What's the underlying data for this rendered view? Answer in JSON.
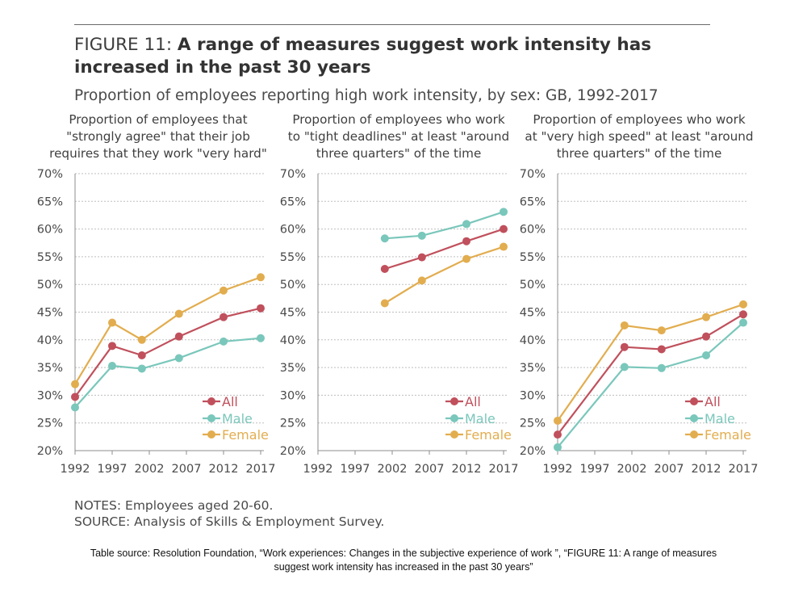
{
  "figure": {
    "label": "FIGURE 11:",
    "title": "A range of measures suggest work intensity has increased in the past 30 years",
    "subtitle": "Proportion of employees reporting high work intensity, by sex: GB, 1992-2017"
  },
  "notes": {
    "notes_line": "NOTES: Employees aged 20-60.",
    "source_line": "SOURCE: Analysis of Skills & Employment Survey."
  },
  "caption": "Table source: Resolution Foundation, “Work experiences: Changes in the subjective experience of work ”, “FIGURE 11: A range of measures suggest work intensity has increased in the past 30 years”",
  "colors": {
    "All": "#c0505c",
    "Male": "#7ac7bb",
    "Female": "#e2ad4f",
    "grid": "#bfbfbf",
    "axis": "#8c8c8c",
    "text": "#4a4a4a"
  },
  "chart_data": [
    {
      "type": "line",
      "title": "Proportion of employees that \"strongly agree\" that their job requires that they work \"very hard\"",
      "title_lines": [
        "Proportion of employees that",
        "\"strongly agree\" that their job",
        "requires that they work \"very hard\""
      ],
      "x_ticks": [
        1992,
        1997,
        2002,
        2007,
        2012,
        2017
      ],
      "y_ticks": [
        "70%",
        "65%",
        "60%",
        "55%",
        "50%",
        "45%",
        "40%",
        "35%",
        "30%",
        "25%",
        "20%"
      ],
      "xlim": [
        1992,
        2017
      ],
      "ylim": [
        20,
        70
      ],
      "legend_labels": [
        "All",
        "Male",
        "Female"
      ],
      "legend_position": "bottom-right",
      "series": [
        {
          "name": "All",
          "x": [
            1992,
            1997,
            2001,
            2006,
            2012,
            2017
          ],
          "values": [
            29.7,
            38.9,
            37.2,
            40.6,
            44.1,
            45.7
          ]
        },
        {
          "name": "Male",
          "x": [
            1992,
            1997,
            2001,
            2006,
            2012,
            2017
          ],
          "values": [
            27.8,
            35.3,
            34.8,
            36.7,
            39.7,
            40.3
          ]
        },
        {
          "name": "Female",
          "x": [
            1992,
            1997,
            2001,
            2006,
            2012,
            2017
          ],
          "values": [
            32.0,
            43.1,
            40.0,
            44.7,
            48.9,
            51.3
          ]
        }
      ]
    },
    {
      "type": "line",
      "title": "Proportion of employees who work to \"tight deadlines\" at least \"around three quarters\" of the time",
      "title_lines": [
        "Proportion of employees who work",
        "to \"tight deadlines\" at least \"around",
        "three quarters\" of the time"
      ],
      "x_ticks": [
        1992,
        1997,
        2002,
        2007,
        2012,
        2017
      ],
      "y_ticks": [
        "70%",
        "65%",
        "60%",
        "55%",
        "50%",
        "45%",
        "40%",
        "35%",
        "30%",
        "25%",
        "20%"
      ],
      "xlim": [
        1992,
        2017
      ],
      "ylim": [
        20,
        70
      ],
      "legend_labels": [
        "All",
        "Male",
        "Female"
      ],
      "legend_position": "bottom-right",
      "series": [
        {
          "name": "All",
          "x": [
            2001,
            2006,
            2012,
            2017
          ],
          "values": [
            52.8,
            54.9,
            57.8,
            60.0
          ]
        },
        {
          "name": "Male",
          "x": [
            2001,
            2006,
            2012,
            2017
          ],
          "values": [
            58.3,
            58.8,
            60.9,
            63.1
          ]
        },
        {
          "name": "Female",
          "x": [
            2001,
            2006,
            2012,
            2017
          ],
          "values": [
            46.6,
            50.7,
            54.6,
            56.8
          ]
        }
      ]
    },
    {
      "type": "line",
      "title": "Proportion of employees who work at \"very high speed\" at least \"around three quarters\" of the time",
      "title_lines": [
        "Proportion of employees who work",
        "at \"very high speed\" at least \"around",
        "three quarters\" of the time"
      ],
      "x_ticks": [
        1992,
        1997,
        2002,
        2007,
        2012,
        2017
      ],
      "y_ticks": [
        "70%",
        "65%",
        "60%",
        "55%",
        "50%",
        "45%",
        "40%",
        "35%",
        "30%",
        "25%",
        "20%"
      ],
      "xlim": [
        1992,
        2017
      ],
      "ylim": [
        20,
        70
      ],
      "legend_labels": [
        "All",
        "Male",
        "Female"
      ],
      "legend_position": "bottom-right",
      "series": [
        {
          "name": "All",
          "x": [
            1992,
            2001,
            2006,
            2012,
            2017
          ],
          "values": [
            22.9,
            38.7,
            38.3,
            40.6,
            44.6
          ]
        },
        {
          "name": "Male",
          "x": [
            1992,
            2001,
            2006,
            2012,
            2017
          ],
          "values": [
            20.6,
            35.1,
            34.9,
            37.2,
            43.1
          ]
        },
        {
          "name": "Female",
          "x": [
            1992,
            2001,
            2006,
            2012,
            2017
          ],
          "values": [
            25.4,
            42.6,
            41.7,
            44.1,
            46.4
          ]
        }
      ]
    }
  ]
}
